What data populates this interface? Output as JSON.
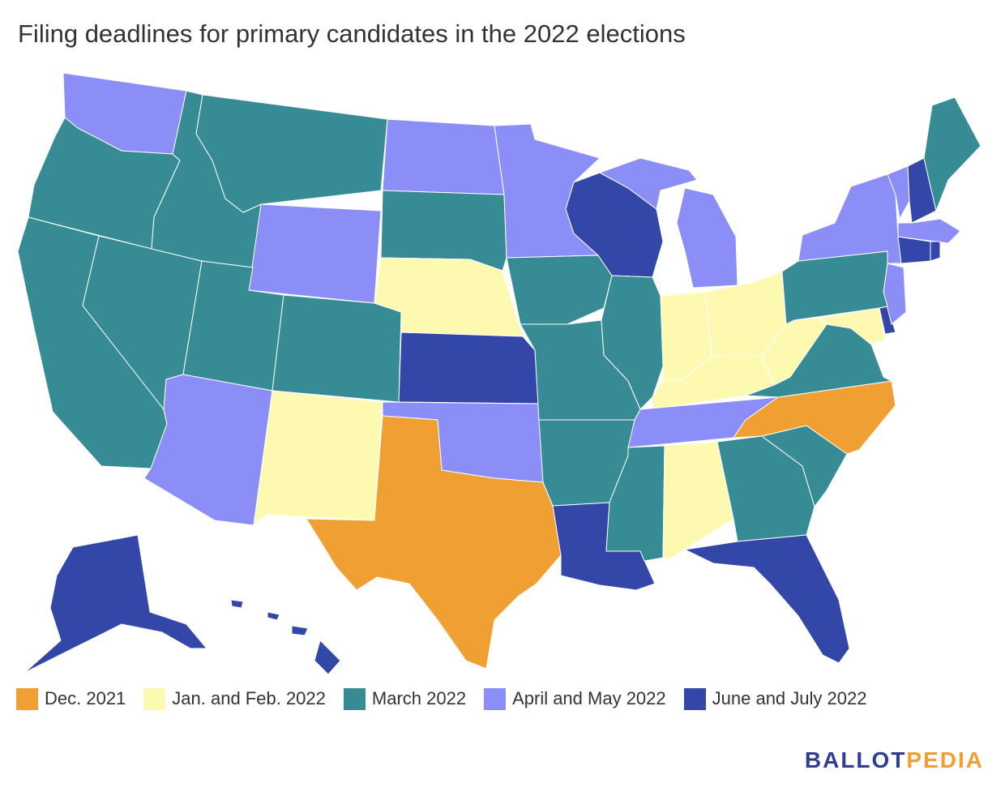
{
  "title": "Filing deadlines for primary candidates in the 2022 elections",
  "colors": {
    "dec2021": "#f0a033",
    "janfeb2022": "#fef9b1",
    "march2022": "#368b95",
    "aprmay2022": "#8a8ef6",
    "junjul2022": "#3347a8"
  },
  "legend": [
    {
      "label": "Dec. 2021",
      "color": "#f0a033"
    },
    {
      "label": "Jan. and Feb. 2022",
      "color": "#fef9b1"
    },
    {
      "label": "March 2022",
      "color": "#368b95"
    },
    {
      "label": "April and May 2022",
      "color": "#8a8ef6"
    },
    {
      "label": "June and July 2022",
      "color": "#3347a8"
    }
  ],
  "states": {
    "WA": "aprmay2022",
    "OR": "march2022",
    "CA": "march2022",
    "NV": "march2022",
    "ID": "march2022",
    "MT": "march2022",
    "WY": "aprmay2022",
    "UT": "march2022",
    "AZ": "aprmay2022",
    "CO": "march2022",
    "NM": "janfeb2022",
    "ND": "aprmay2022",
    "SD": "march2022",
    "NE": "janfeb2022",
    "KS": "junjul2022",
    "OK": "aprmay2022",
    "TX": "dec2021",
    "MN": "aprmay2022",
    "IA": "march2022",
    "MO": "march2022",
    "AR": "march2022",
    "LA": "junjul2022",
    "WI": "junjul2022",
    "IL": "march2022",
    "MI": "aprmay2022",
    "IN": "janfeb2022",
    "OH": "janfeb2022",
    "KY": "janfeb2022",
    "TN": "aprmay2022",
    "MS": "march2022",
    "AL": "janfeb2022",
    "GA": "march2022",
    "FL": "junjul2022",
    "SC": "march2022",
    "NC": "dec2021",
    "VA": "march2022",
    "WV": "janfeb2022",
    "MD": "janfeb2022",
    "DE": "junjul2022",
    "NJ": "aprmay2022",
    "PA": "march2022",
    "NY": "aprmay2022",
    "VT": "aprmay2022",
    "NH": "junjul2022",
    "ME": "march2022",
    "MA": "aprmay2022",
    "CT": "junjul2022",
    "RI": "junjul2022",
    "AK": "junjul2022",
    "HI": "junjul2022"
  },
  "brand": {
    "part1": "BALLOT",
    "part2": "PEDIA"
  }
}
